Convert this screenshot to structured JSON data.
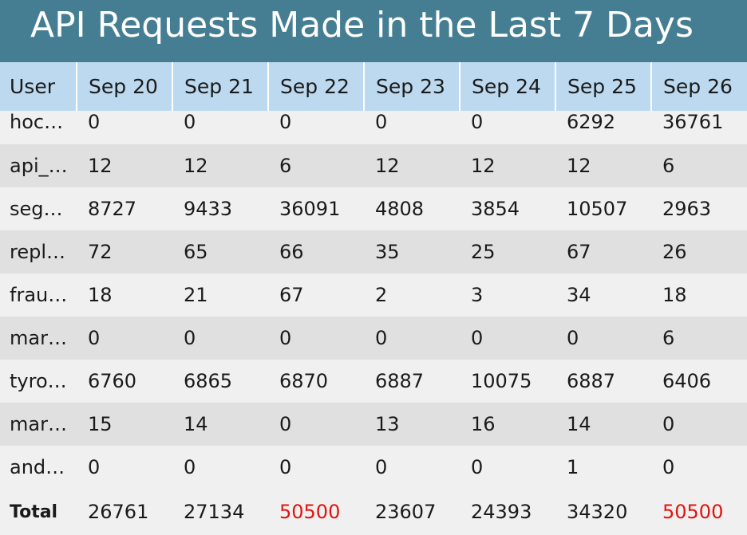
{
  "title": "API Requests Made in the Last 7 Days",
  "columns": [
    "User",
    "Sep 20",
    "Sep 21",
    "Sep 22",
    "Sep 23",
    "Sep 24",
    "Sep 25",
    "Sep 26"
  ],
  "rows": [
    {
      "user": "hoc…",
      "values": [
        "0",
        "0",
        "0",
        "0",
        "0",
        "6292",
        "36761"
      ]
    },
    {
      "user": "api_…",
      "values": [
        "12",
        "12",
        "6",
        "12",
        "12",
        "12",
        "6"
      ]
    },
    {
      "user": "seg…",
      "values": [
        "8727",
        "9433",
        "36091",
        "4808",
        "3854",
        "10507",
        "2963"
      ]
    },
    {
      "user": "repl…",
      "values": [
        "72",
        "65",
        "66",
        "35",
        "25",
        "67",
        "26"
      ]
    },
    {
      "user": "frau…",
      "values": [
        "18",
        "21",
        "67",
        "2",
        "3",
        "34",
        "18"
      ]
    },
    {
      "user": "mar…",
      "values": [
        "0",
        "0",
        "0",
        "0",
        "0",
        "0",
        "6"
      ]
    },
    {
      "user": "tyro…",
      "values": [
        "6760",
        "6865",
        "6870",
        "6887",
        "10075",
        "6887",
        "6406"
      ]
    },
    {
      "user": "mar…",
      "values": [
        "15",
        "14",
        "0",
        "13",
        "16",
        "14",
        "0"
      ]
    },
    {
      "user": "and…",
      "values": [
        "0",
        "0",
        "0",
        "0",
        "0",
        "1",
        "0"
      ]
    }
  ],
  "total": {
    "label": "Total",
    "values": [
      "26761",
      "27134",
      "50500",
      "23607",
      "24393",
      "34320",
      "50500"
    ],
    "highlighted": [
      false,
      false,
      true,
      false,
      false,
      false,
      true
    ]
  },
  "colors": {
    "header_bg": "#457e92",
    "column_header_bg": "#bcd9ef",
    "row_light": "#f0f0f0",
    "row_dark": "#e0e0e0",
    "highlight_text": "#e0140f"
  }
}
